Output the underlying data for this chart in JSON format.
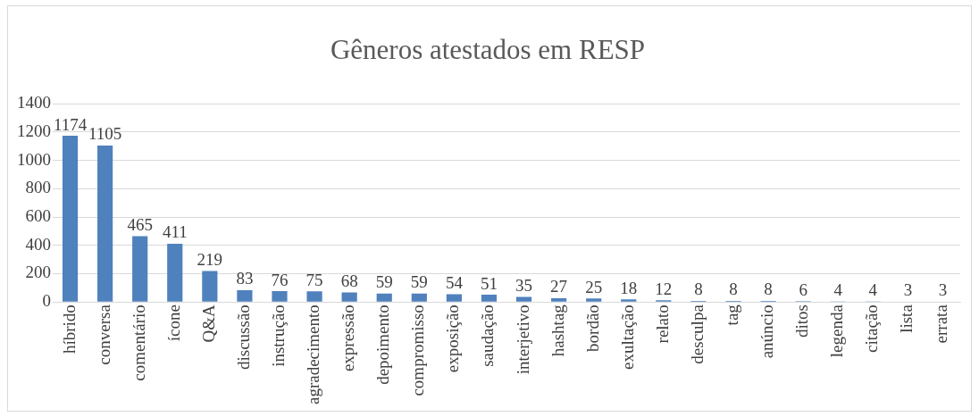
{
  "chart_data": {
    "type": "bar",
    "title": "Gêneros atestados em RESP",
    "categories": [
      "híbrido",
      "conversa",
      "comentário",
      "ícone",
      "Q&A",
      "discussão",
      "instrução",
      "agradecimento",
      "expressão",
      "depoimento",
      "compromisso",
      "exposição",
      "saudação",
      "interjetivo",
      "hashtag",
      "bordão",
      "exultação",
      "relato",
      "desculpa",
      "tag",
      "anúncio",
      "ditos",
      "legenda",
      "citação",
      "lista",
      "errata"
    ],
    "values": [
      1174,
      1105,
      465,
      411,
      219,
      83,
      76,
      75,
      68,
      59,
      59,
      54,
      51,
      35,
      27,
      25,
      18,
      12,
      8,
      8,
      8,
      6,
      4,
      4,
      3,
      3
    ],
    "color": "#4f81bd",
    "ylim": [
      0,
      1400
    ],
    "yticks": [
      0,
      200,
      400,
      600,
      800,
      1000,
      1200,
      1400
    ],
    "grid": "y",
    "data_labels": true,
    "legend": false
  }
}
